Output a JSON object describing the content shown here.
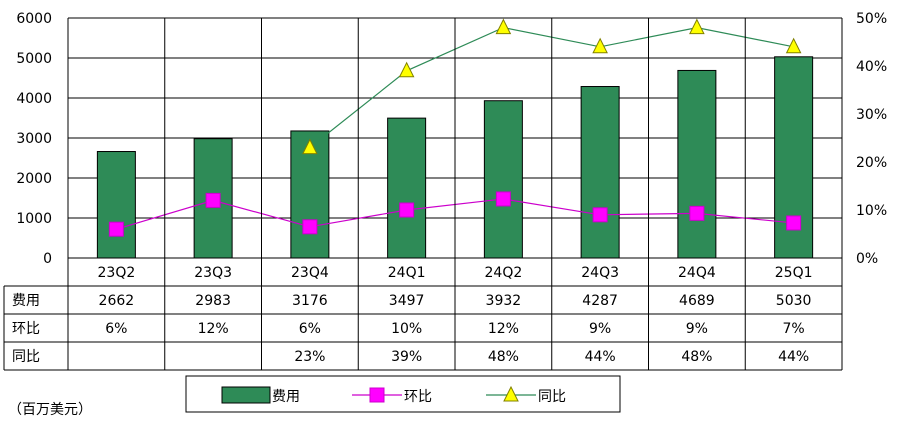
{
  "chart_data": {
    "type": "bar",
    "categories": [
      "23Q2",
      "23Q3",
      "23Q4",
      "24Q1",
      "24Q2",
      "24Q3",
      "24Q4",
      "25Q1"
    ],
    "series": [
      {
        "name": "费用",
        "type": "bar",
        "axis": "left",
        "color": "#2e8b57",
        "values": [
          2662,
          2983,
          3176,
          3497,
          3932,
          4287,
          4689,
          5030
        ]
      },
      {
        "name": "环比",
        "type": "line",
        "axis": "right",
        "color": "#cc00cc",
        "marker": "square",
        "values": [
          6,
          12,
          6.5,
          10,
          12.3,
          9,
          9.3,
          7.3
        ]
      },
      {
        "name": "同比",
        "type": "line",
        "axis": "right",
        "color": "#2e8b57",
        "marker": "triangle",
        "values": [
          null,
          null,
          23,
          39,
          48,
          44,
          48,
          44
        ]
      }
    ],
    "ylim_left": [
      0,
      6000
    ],
    "left_ticks": [
      "0",
      "1000",
      "2000",
      "3000",
      "4000",
      "5000",
      "6000"
    ],
    "ylim_right": [
      0,
      50
    ],
    "right_ticks": [
      "0%",
      "10%",
      "20%",
      "30%",
      "40%",
      "50%"
    ],
    "grid": true,
    "legend_position": "bottom",
    "table": {
      "rows": [
        {
          "label": "费用",
          "cells": [
            "2662",
            "2983",
            "3176",
            "3497",
            "3932",
            "4287",
            "4689",
            "5030"
          ]
        },
        {
          "label": "环比",
          "cells": [
            "6%",
            "12%",
            "6%",
            "10%",
            "12%",
            "9%",
            "9%",
            "7%"
          ]
        },
        {
          "label": "同比",
          "cells": [
            "",
            "",
            "23%",
            "39%",
            "48%",
            "44%",
            "48%",
            "44%"
          ]
        }
      ]
    },
    "unit_label": "（百万美元）"
  }
}
